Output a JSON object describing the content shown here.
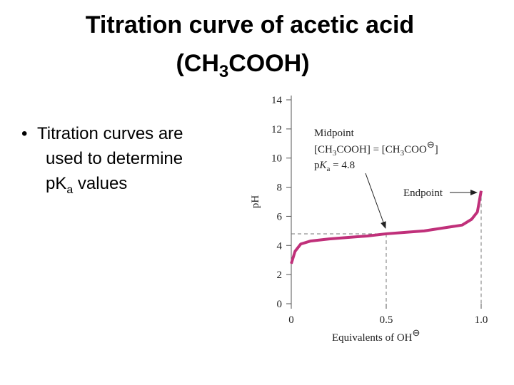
{
  "title": {
    "line1": "Titration curve of acetic acid",
    "line2": [
      "(CH",
      "3",
      "COOH)"
    ]
  },
  "bullet": {
    "marker": "•",
    "lines": [
      "Titration curves are",
      "used to determine"
    ],
    "line3": [
      "pK",
      "a",
      " values"
    ]
  },
  "chart_data": {
    "type": "line",
    "y_label": "pH",
    "x_label": [
      "Equivalents of OH",
      "⊖"
    ],
    "midpoint_label": "Midpoint",
    "midpoint_equation": [
      "[CH",
      "3",
      "COOH] = [CH",
      "3",
      "COO",
      "⊖",
      "]"
    ],
    "pka_label": [
      "p",
      "K",
      "a",
      " = 4.8"
    ],
    "endpoint_label": "Endpoint",
    "x": [
      0,
      0.02,
      0.05,
      0.1,
      0.2,
      0.3,
      0.4,
      0.5,
      0.6,
      0.7,
      0.8,
      0.9,
      0.95,
      0.98,
      1.0
    ],
    "values": [
      2.75,
      3.6,
      4.1,
      4.3,
      4.45,
      4.55,
      4.65,
      4.8,
      4.9,
      5.0,
      5.2,
      5.4,
      5.8,
      6.3,
      7.75
    ],
    "color": "#c0307a",
    "midpoint": {
      "x": 0.5,
      "y": 4.8
    },
    "endpoint": {
      "x": 1
    },
    "xlim": [
      0,
      1
    ],
    "ylim": [
      0,
      14
    ],
    "xticks": [
      0,
      0.5,
      {
        "value": 1,
        "label": "1.0"
      }
    ],
    "yticks": [
      0,
      2,
      4,
      6,
      8,
      10,
      12,
      14
    ]
  }
}
